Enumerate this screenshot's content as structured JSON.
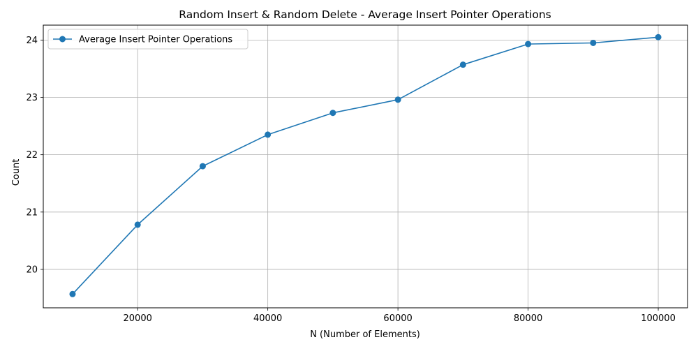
{
  "chart_data": {
    "type": "line",
    "title": "Random Insert & Random Delete - Average Insert Pointer Operations",
    "xlabel": "N (Number of Elements)",
    "ylabel": "Count",
    "xlim": [
      5500,
      104500
    ],
    "ylim": [
      19.33,
      24.26
    ],
    "xticks": [
      20000,
      40000,
      60000,
      80000,
      100000
    ],
    "xtick_labels": [
      "20000",
      "40000",
      "60000",
      "80000",
      "100000"
    ],
    "yticks": [
      20,
      21,
      22,
      23,
      24
    ],
    "ytick_labels": [
      "20",
      "21",
      "22",
      "23",
      "24"
    ],
    "grid": true,
    "legend_position": "upper-left",
    "series": [
      {
        "name": "Average Insert Pointer Operations",
        "color": "#1f77b4",
        "marker": "circle",
        "x": [
          10000,
          20000,
          30000,
          40000,
          50000,
          60000,
          70000,
          80000,
          90000,
          100000
        ],
        "y": [
          19.57,
          20.78,
          21.8,
          22.35,
          22.73,
          22.96,
          23.57,
          23.93,
          23.95,
          24.05
        ]
      }
    ]
  }
}
